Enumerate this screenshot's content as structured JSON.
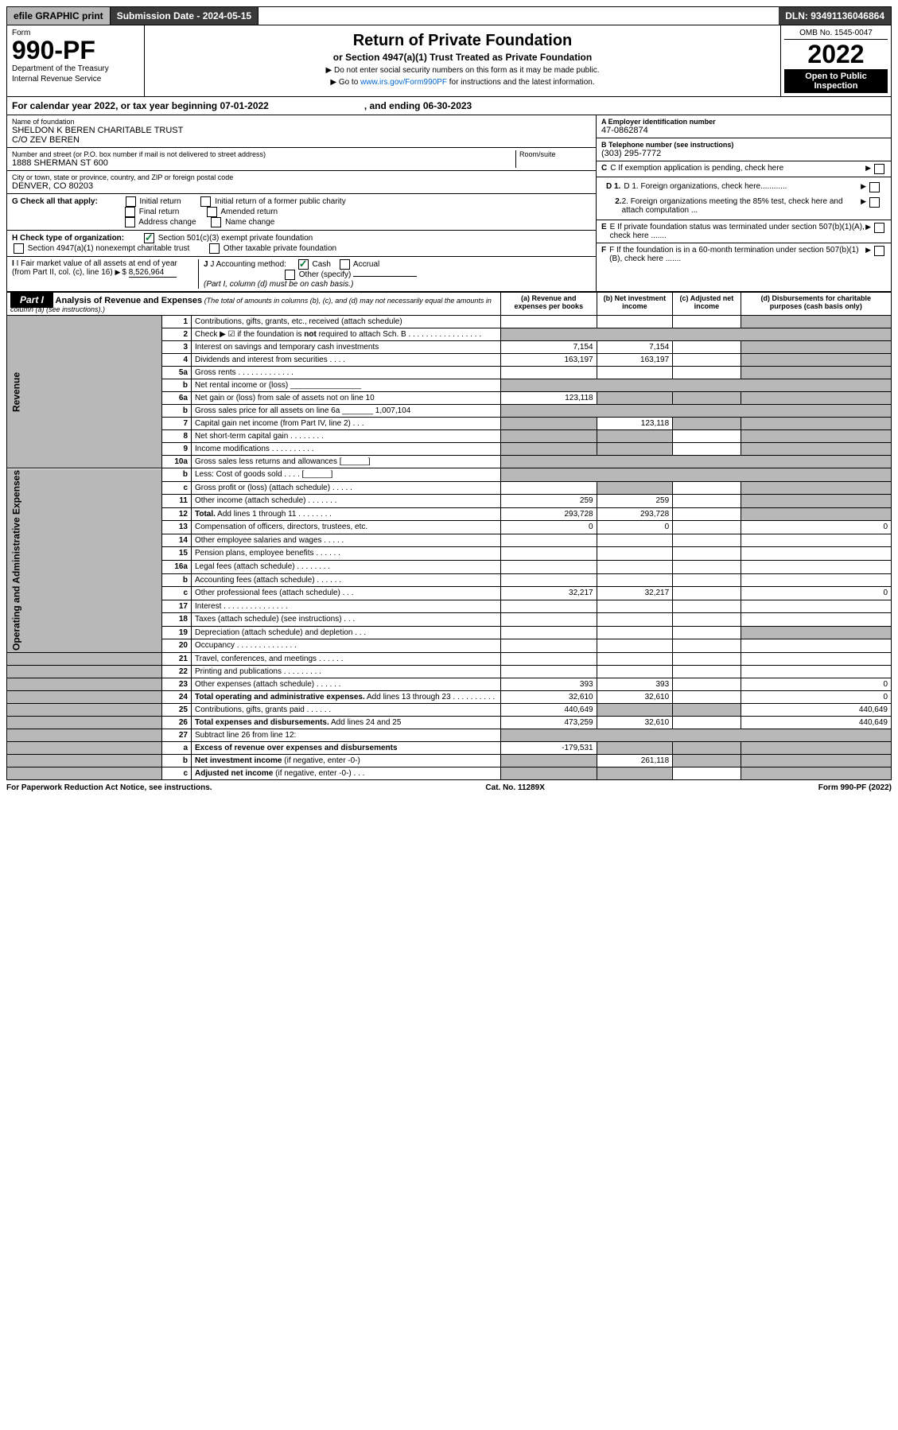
{
  "topbar": {
    "efile": "efile GRAPHIC print",
    "subdate_lbl": "Submission Date - 2024-05-15",
    "dln": "DLN: 93491136046864"
  },
  "hdr": {
    "form": "Form",
    "num": "990-PF",
    "dept": "Department of the Treasury",
    "irs": "Internal Revenue Service",
    "title": "Return of Private Foundation",
    "sub": "or Section 4947(a)(1) Trust Treated as Private Foundation",
    "note1": "▶ Do not enter social security numbers on this form as it may be made public.",
    "note2_pre": "▶ Go to ",
    "note2_link": "www.irs.gov/Form990PF",
    "note2_post": " for instructions and the latest information.",
    "omb": "OMB No. 1545-0047",
    "year": "2022",
    "open": "Open to Public Inspection"
  },
  "cal": {
    "pre": "For calendar year 2022, or tax year beginning ",
    "begin": "07-01-2022",
    "mid": ", and ending ",
    "end": "06-30-2023"
  },
  "id": {
    "name_lbl": "Name of foundation",
    "name": "SHELDON K BEREN CHARITABLE TRUST",
    "co": "C/O ZEV BEREN",
    "addr_lbl": "Number and street (or P.O. box number if mail is not delivered to street address)",
    "room_lbl": "Room/suite",
    "addr": "1888 SHERMAN ST 600",
    "city_lbl": "City or town, state or province, country, and ZIP or foreign postal code",
    "city": "DENVER, CO  80203",
    "a_lbl": "A Employer identification number",
    "a": "47-0862874",
    "b_lbl": "B Telephone number (see instructions)",
    "b": "(303) 295-7772",
    "c": "C If exemption application is pending, check here",
    "d1": "D 1. Foreign organizations, check here............",
    "d2": "2. Foreign organizations meeting the 85% test, check here and attach computation ...",
    "e": "E  If private foundation status was terminated under section 507(b)(1)(A), check here .......",
    "f": "F  If the foundation is in a 60-month termination under section 507(b)(1)(B), check here .......",
    "g_lbl": "G Check all that apply:",
    "g_opts": [
      "Initial return",
      "Initial return of a former public charity",
      "Final return",
      "Amended return",
      "Address change",
      "Name change"
    ],
    "h_lbl": "H Check type of organization:",
    "h_opts": [
      "Section 501(c)(3) exempt private foundation",
      "Section 4947(a)(1) nonexempt charitable trust",
      "Other taxable private foundation"
    ],
    "i_lbl": "I Fair market value of all assets at end of year (from Part II, col. (c), line 16)",
    "i_val": "8,526,964",
    "j_lbl": "J Accounting method:",
    "j_cash": "Cash",
    "j_accr": "Accrual",
    "j_other": "Other (specify)",
    "j_note": "(Part I, column (d) must be on cash basis.)"
  },
  "part1": {
    "tag": "Part I",
    "title": "Analysis of Revenue and Expenses",
    "note": "(The total of amounts in columns (b), (c), and (d) may not necessarily equal the amounts in column (a) (see instructions).)",
    "cols": {
      "a": "(a) Revenue and expenses per books",
      "b": "(b) Net investment income",
      "c": "(c) Adjusted net income",
      "d": "(d) Disbursements for charitable purposes (cash basis only)"
    },
    "revenue_label": "Revenue",
    "opex_label": "Operating and Administrative Expenses"
  },
  "rows": [
    {
      "n": "1",
      "d": "Contributions, gifts, grants, etc., received (attach schedule)",
      "a": "",
      "b": "",
      "c": "",
      "x": "",
      "grey_d": true
    },
    {
      "n": "2",
      "d": "Check ▶ ☑ if the foundation is <b>not</b> required to attach Sch. B   .  .  .  .  .  .  .  .  .  .  .  .  .  .  .  .  .",
      "grey_all": true,
      "hidecols": true
    },
    {
      "n": "3",
      "d": "Interest on savings and temporary cash investments",
      "a": "7,154",
      "b": "7,154",
      "c": "",
      "x": "",
      "grey_d": true
    },
    {
      "n": "4",
      "d": "Dividends and interest from securities   .   .   .   .",
      "a": "163,197",
      "b": "163,197",
      "c": "",
      "x": "",
      "grey_d": true
    },
    {
      "n": "5a",
      "d": "Gross rents   .   .   .   .   .   .   .   .   .   .   .   .   .",
      "a": "",
      "b": "",
      "c": "",
      "x": "",
      "grey_d": true
    },
    {
      "n": "b",
      "d": "Net rental income or (loss) ________________",
      "grey_all": true,
      "hidecols": true
    },
    {
      "n": "6a",
      "d": "Net gain or (loss) from sale of assets not on line 10",
      "a": "123,118",
      "b": "",
      "c": "",
      "x": "",
      "grey_bcd": true
    },
    {
      "n": "b",
      "d": "Gross sales price for all assets on line 6a _______ 1,007,104",
      "grey_all": true,
      "hidecols": true
    },
    {
      "n": "7",
      "d": "Capital gain net income (from Part IV, line 2)   .   .   .",
      "a": "",
      "b": "123,118",
      "c": "",
      "x": "",
      "grey_a": true,
      "grey_cd": true
    },
    {
      "n": "8",
      "d": "Net short-term capital gain   .   .   .   .   .   .   .   .",
      "a": "",
      "b": "",
      "c": "",
      "x": "",
      "grey_ab": true,
      "grey_d": true
    },
    {
      "n": "9",
      "d": "Income modifications   .   .   .   .   .   .   .   .   .   .",
      "a": "",
      "b": "",
      "c": "",
      "x": "",
      "grey_ab": true,
      "grey_d": true
    },
    {
      "n": "10a",
      "d": "Gross sales less returns and allowances   [______]",
      "grey_all": true,
      "hidecols": true
    },
    {
      "n": "b",
      "d": "Less: Cost of goods sold   .   .   .   .   [______]",
      "grey_all": true,
      "hidecols": true
    },
    {
      "n": "c",
      "d": "Gross profit or (loss) (attach schedule)   .   .   .   .   .",
      "a": "",
      "b": "",
      "c": "",
      "x": "",
      "grey_b": true,
      "grey_d": true
    },
    {
      "n": "11",
      "d": "Other income (attach schedule)   .   .   .   .   .   .   .",
      "a": "259",
      "b": "259",
      "c": "",
      "x": "",
      "grey_d": true
    },
    {
      "n": "12",
      "d": "<b>Total.</b> Add lines 1 through 11   .   .   .   .   .   .   .   .",
      "a": "293,728",
      "b": "293,728",
      "c": "",
      "x": "",
      "grey_d": true
    },
    {
      "n": "13",
      "d": "Compensation of officers, directors, trustees, etc.",
      "a": "0",
      "b": "0",
      "c": "",
      "x": "0"
    },
    {
      "n": "14",
      "d": "Other employee salaries and wages   .   .   .   .   .",
      "a": "",
      "b": "",
      "c": "",
      "x": ""
    },
    {
      "n": "15",
      "d": "Pension plans, employee benefits   .   .   .   .   .   .",
      "a": "",
      "b": "",
      "c": "",
      "x": ""
    },
    {
      "n": "16a",
      "d": "Legal fees (attach schedule)   .   .   .   .   .   .   .   .",
      "a": "",
      "b": "",
      "c": "",
      "x": ""
    },
    {
      "n": "b",
      "d": "Accounting fees (attach schedule)   .   .   .   .   .   .",
      "a": "",
      "b": "",
      "c": "",
      "x": ""
    },
    {
      "n": "c",
      "d": "Other professional fees (attach schedule)   .   .   .",
      "a": "32,217",
      "b": "32,217",
      "c": "",
      "x": "0"
    },
    {
      "n": "17",
      "d": "Interest   .   .   .   .   .   .   .   .   .   .   .   .   .   .   .",
      "a": "",
      "b": "",
      "c": "",
      "x": ""
    },
    {
      "n": "18",
      "d": "Taxes (attach schedule) (see instructions)   .   .   .",
      "a": "",
      "b": "",
      "c": "",
      "x": ""
    },
    {
      "n": "19",
      "d": "Depreciation (attach schedule) and depletion   .   .   .",
      "a": "",
      "b": "",
      "c": "",
      "x": "",
      "grey_d": true
    },
    {
      "n": "20",
      "d": "Occupancy   .   .   .   .   .   .   .   .   .   .   .   .   .   .",
      "a": "",
      "b": "",
      "c": "",
      "x": ""
    },
    {
      "n": "21",
      "d": "Travel, conferences, and meetings   .   .   .   .   .   .",
      "a": "",
      "b": "",
      "c": "",
      "x": ""
    },
    {
      "n": "22",
      "d": "Printing and publications   .   .   .   .   .   .   .   .   .",
      "a": "",
      "b": "",
      "c": "",
      "x": ""
    },
    {
      "n": "23",
      "d": "Other expenses (attach schedule)   .   .   .   .   .   .",
      "a": "393",
      "b": "393",
      "c": "",
      "x": "0"
    },
    {
      "n": "24",
      "d": "<b>Total operating and administrative expenses.</b> Add lines 13 through 23   .   .   .   .   .   .   .   .   .   .",
      "a": "32,610",
      "b": "32,610",
      "c": "",
      "x": "0"
    },
    {
      "n": "25",
      "d": "Contributions, gifts, grants paid   .   .   .   .   .   .",
      "a": "440,649",
      "b": "",
      "c": "",
      "x": "440,649",
      "grey_bc": true
    },
    {
      "n": "26",
      "d": "<b>Total expenses and disbursements.</b> Add lines 24 and 25",
      "a": "473,259",
      "b": "32,610",
      "c": "",
      "x": "440,649"
    },
    {
      "n": "27",
      "d": "Subtract line 26 from line 12:",
      "grey_all": true,
      "hidecols": true
    },
    {
      "n": "a",
      "d": "<b>Excess of revenue over expenses and disbursements</b>",
      "a": "-179,531",
      "b": "",
      "c": "",
      "x": "",
      "grey_bcd": true
    },
    {
      "n": "b",
      "d": "<b>Net investment income</b> (if negative, enter -0-)",
      "a": "",
      "b": "261,118",
      "c": "",
      "x": "",
      "grey_a": true,
      "grey_cd": true
    },
    {
      "n": "c",
      "d": "<b>Adjusted net income</b> (if negative, enter -0-)   .   .   .",
      "a": "",
      "b": "",
      "c": "",
      "x": "",
      "grey_ab": true,
      "grey_d": true
    }
  ],
  "foot": {
    "l": "For Paperwork Reduction Act Notice, see instructions.",
    "c": "Cat. No. 11289X",
    "r": "Form 990-PF (2022)"
  }
}
